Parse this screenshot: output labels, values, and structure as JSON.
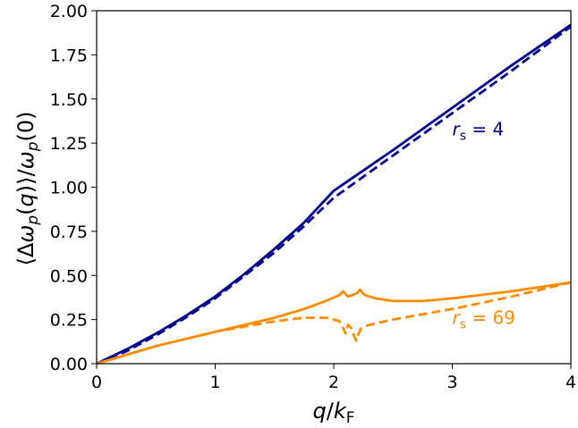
{
  "chart_data": {
    "type": "line",
    "xlabel": "q/k_F",
    "ylabel": "⟨Δω_p(q)⟩/ω_p(0)",
    "xlim": [
      0,
      4
    ],
    "ylim": [
      0,
      2
    ],
    "xticks": [
      "0",
      "1",
      "2",
      "3",
      "4"
    ],
    "yticks": [
      "0.00",
      "0.25",
      "0.50",
      "0.75",
      "1.00",
      "1.25",
      "1.50",
      "1.75",
      "2.00"
    ],
    "grid": false,
    "colors": {
      "rs4": "#00008b",
      "rs69": "#ff8c00"
    },
    "annotations": [
      {
        "text_prefix": "r",
        "text_sub": "s",
        "text_suffix": " = 4",
        "color": "#00008b",
        "at": [
          3.0,
          1.33
        ]
      },
      {
        "text_prefix": "r",
        "text_sub": "s",
        "text_suffix": " = 69",
        "color": "#ff8c00",
        "at": [
          3.0,
          0.26
        ]
      }
    ],
    "series": [
      {
        "style": "solid",
        "color": "#00008b",
        "x": [
          0,
          0.25,
          0.5,
          0.75,
          1.0,
          1.25,
          1.5,
          1.75,
          2.0,
          2.5,
          3.0,
          3.5,
          4.0
        ],
        "y": [
          0,
          0.08,
          0.17,
          0.27,
          0.38,
          0.51,
          0.65,
          0.8,
          0.98,
          1.21,
          1.45,
          1.69,
          1.92
        ]
      },
      {
        "style": "dashed",
        "color": "#00008b",
        "x": [
          0,
          0.25,
          0.5,
          0.75,
          1.0,
          1.25,
          1.5,
          1.75,
          2.0,
          2.5,
          3.0,
          3.5,
          4.0
        ],
        "y": [
          0,
          0.07,
          0.16,
          0.26,
          0.37,
          0.5,
          0.63,
          0.78,
          0.94,
          1.18,
          1.42,
          1.66,
          1.91
        ]
      },
      {
        "style": "solid",
        "color": "#ff8c00",
        "x": [
          0,
          0.5,
          1.0,
          1.5,
          1.75,
          1.95,
          2.05,
          2.08,
          2.12,
          2.16,
          2.2,
          2.22,
          2.26,
          2.35,
          2.5,
          2.75,
          3.0,
          3.5,
          4.0
        ],
        "y": [
          0,
          0.1,
          0.18,
          0.26,
          0.31,
          0.36,
          0.39,
          0.41,
          0.38,
          0.39,
          0.4,
          0.42,
          0.39,
          0.37,
          0.355,
          0.355,
          0.37,
          0.41,
          0.46
        ]
      },
      {
        "style": "dashed",
        "color": "#ff8c00",
        "x": [
          0,
          0.5,
          1.0,
          1.5,
          1.75,
          1.95,
          2.05,
          2.08,
          2.1,
          2.12,
          2.15,
          2.17,
          2.19,
          2.21,
          2.23,
          2.3,
          2.5,
          3.0,
          3.5,
          4.0
        ],
        "y": [
          0,
          0.1,
          0.18,
          0.24,
          0.26,
          0.26,
          0.24,
          0.2,
          0.17,
          0.22,
          0.2,
          0.16,
          0.13,
          0.17,
          0.2,
          0.22,
          0.25,
          0.31,
          0.38,
          0.46
        ]
      }
    ]
  }
}
